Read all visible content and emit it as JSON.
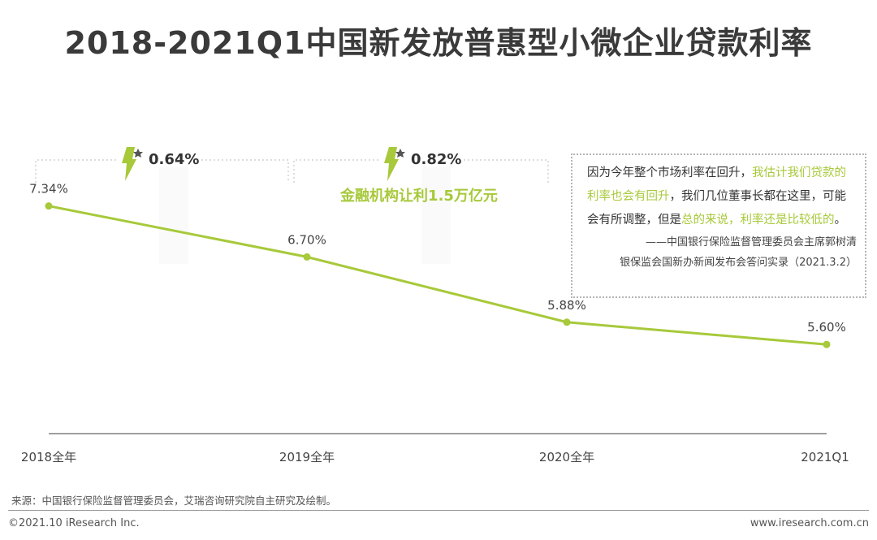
{
  "header": {
    "title": "2018-2021Q1中国新发放普惠型小微企业贷款利率"
  },
  "chart_data": {
    "type": "line",
    "categories": [
      "2018全年",
      "2019全年",
      "2020全年",
      "2021Q1"
    ],
    "series": [
      {
        "name": "普惠型小微企业贷款利率",
        "values": [
          7.34,
          6.7,
          5.88,
          5.6
        ]
      }
    ],
    "data_labels": [
      "7.34%",
      "6.70%",
      "5.88%",
      "5.60%"
    ],
    "unit": "%",
    "ylim": [
      4.5,
      8.5
    ],
    "grid": false,
    "line_color": "#a7c93a",
    "annotations": {
      "drops": [
        {
          "between": [
            "2018全年",
            "2019全年"
          ],
          "label": "0.64%"
        },
        {
          "between": [
            "2019全年",
            "2020全年"
          ],
          "label": "0.82%"
        }
      ],
      "highlight": "金融机构让利1.5万亿元",
      "highlight_color": "#a7c93a"
    }
  },
  "quote": {
    "part1": "因为今年整个市场利率在回升，",
    "part2": "我估计我们贷款的利率也会有回升",
    "part3": "，我们几位董事长都在这里，可能会有所调整，但是",
    "part4": "总的来说，利率还是比较低的",
    "part5": "。",
    "source_line1": "——中国银行保险监督管理委员会主席郭树清",
    "source_line2": "银保监会国新办新闻发布会答问实录（2021.3.2）"
  },
  "footer": {
    "source": "来源：中国银行保险监督管理委员会，艾瑞咨询研究院自主研究及绘制。",
    "copyright": "©2021.10 iResearch Inc.",
    "website": "www.iresearch.com.cn"
  }
}
